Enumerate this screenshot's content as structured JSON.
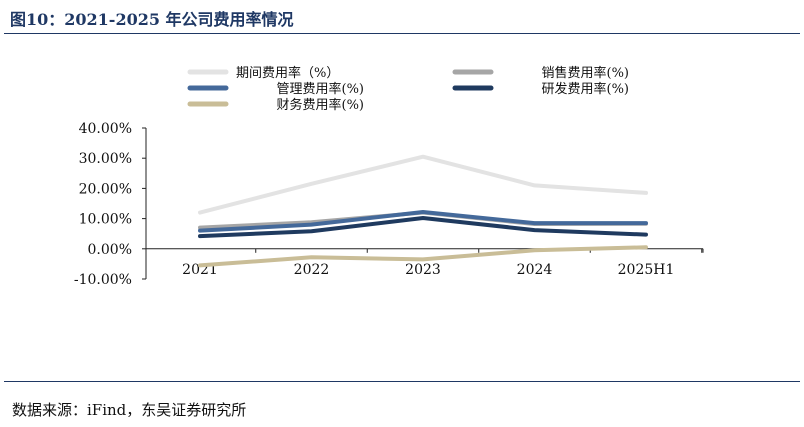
{
  "figure": {
    "title": "图10：2021-2025 年公司费用率情况",
    "source": "数据来源：iFind，东吴证券研究所"
  },
  "chart_data": {
    "type": "line",
    "categories": [
      "2021",
      "2022",
      "2023",
      "2024",
      "2025H1"
    ],
    "y_ticks": [
      "40.00%",
      "30.00%",
      "20.00%",
      "10.00%",
      "0.00%",
      "-10.00%"
    ],
    "ylim": [
      -10,
      40
    ],
    "grid": false,
    "legend_position": "top",
    "series": [
      {
        "name": "期间费用率（%）",
        "color": "#e3e3e3",
        "values": [
          12.0,
          21.5,
          30.5,
          21.0,
          18.5
        ]
      },
      {
        "name": "销售费用率(%)",
        "color": "#a6a6a6",
        "values": [
          7.0,
          8.8,
          12.0,
          8.2,
          8.3
        ]
      },
      {
        "name": "管理费用率(%)",
        "color": "#44699a",
        "values": [
          6.0,
          8.0,
          12.2,
          8.5,
          8.5
        ]
      },
      {
        "name": "研发费用率(%)",
        "color": "#1f3a5f",
        "values": [
          4.2,
          5.8,
          10.2,
          6.2,
          4.7
        ]
      },
      {
        "name": "财务费用率(%)",
        "color": "#c9bd97",
        "values": [
          -5.5,
          -2.8,
          -3.5,
          -0.5,
          0.5
        ]
      }
    ]
  }
}
